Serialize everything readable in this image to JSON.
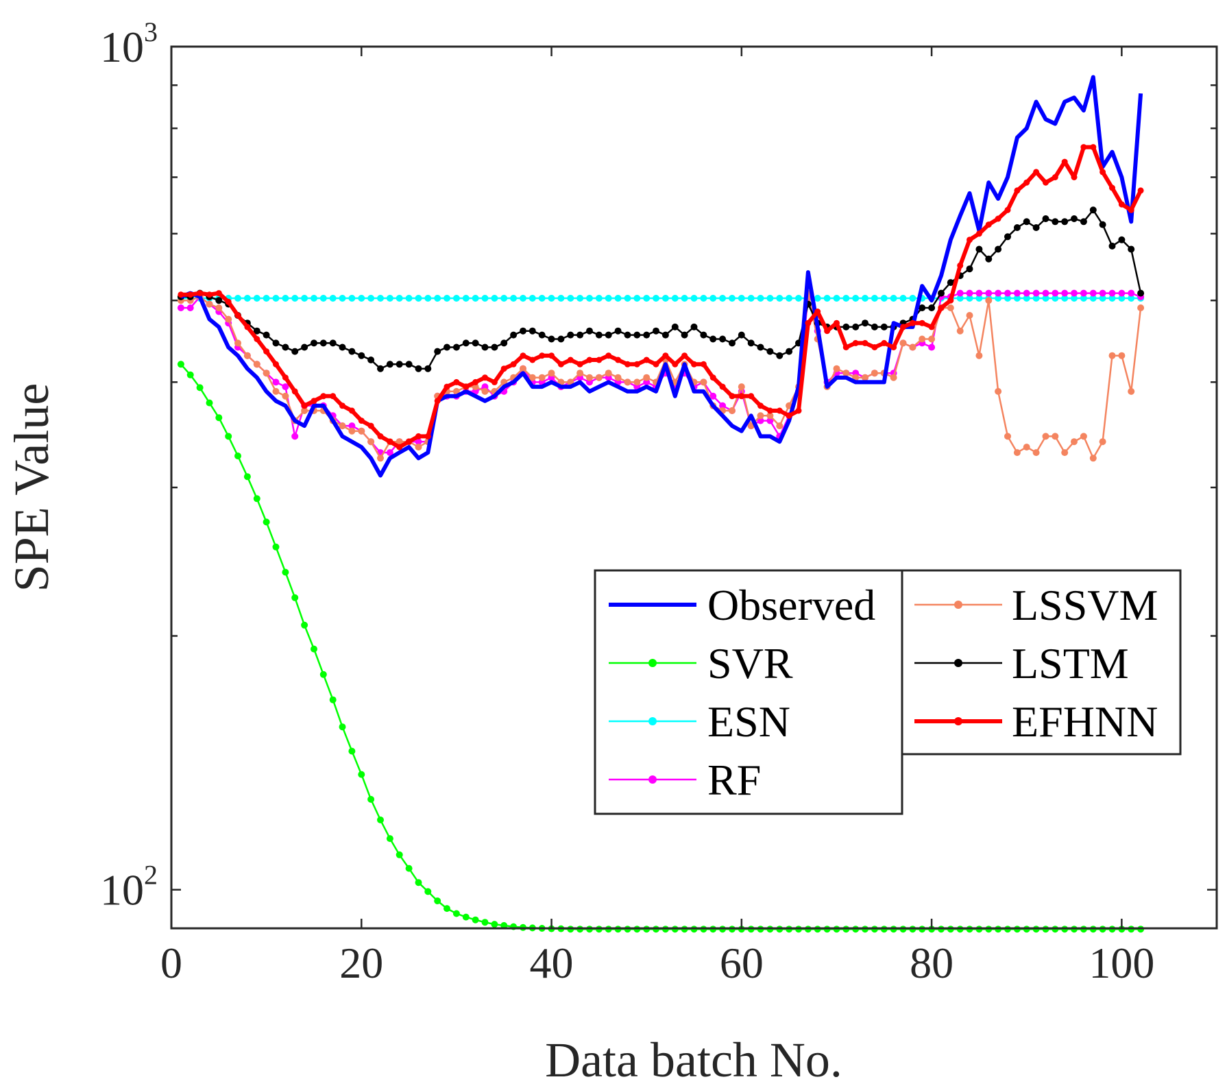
{
  "chart_data": {
    "type": "line",
    "title": "",
    "xlabel": "Data batch No.",
    "ylabel": "SPE Value",
    "xlim": [
      0,
      110
    ],
    "ylim": [
      90,
      1000
    ],
    "yscale": "log",
    "grid": false,
    "legend_position": "lower-right",
    "x_ticks": [
      0,
      20,
      40,
      60,
      80,
      100
    ],
    "x_tick_labels": [
      "0",
      "20",
      "40",
      "60",
      "80",
      "100"
    ],
    "y_ticks": [
      100,
      1000
    ],
    "y_tick_labels": [
      {
        "base": "10",
        "exp": "2"
      },
      {
        "base": "10",
        "exp": "3"
      }
    ],
    "x_start": 1,
    "series": [
      {
        "name": "Observed",
        "color": "#0000ff",
        "marker": false,
        "bold": true,
        "values": [
          505,
          510,
          505,
          475,
          465,
          440,
          430,
          415,
          405,
          390,
          380,
          375,
          360,
          355,
          375,
          375,
          360,
          345,
          340,
          335,
          325,
          310,
          325,
          330,
          335,
          325,
          330,
          380,
          385,
          385,
          390,
          385,
          380,
          385,
          395,
          400,
          410,
          395,
          395,
          400,
          395,
          395,
          400,
          390,
          395,
          400,
          395,
          390,
          390,
          395,
          390,
          420,
          385,
          420,
          390,
          390,
          375,
          365,
          355,
          350,
          365,
          345,
          345,
          340,
          360,
          395,
          540,
          465,
          395,
          405,
          405,
          400,
          400,
          400,
          400,
          470,
          465,
          465,
          520,
          500,
          535,
          590,
          630,
          670,
          605,
          690,
          660,
          700,
          780,
          800,
          860,
          820,
          810,
          860,
          870,
          840,
          920,
          720,
          750,
          700,
          620,
          880
        ]
      },
      {
        "name": "SVR",
        "color": "#00ff00",
        "marker": true,
        "bold": false,
        "values": [
          420,
          408,
          394,
          378,
          363,
          345,
          327,
          309,
          291,
          273,
          255,
          238,
          222,
          206,
          193,
          180,
          168,
          156,
          146,
          137,
          128,
          121,
          115,
          110,
          106,
          102,
          99.5,
          97,
          95,
          93.7,
          92.8,
          92.1,
          91.5,
          91,
          90.7,
          90.4,
          90.2,
          90.1,
          90,
          89.9,
          89.9,
          89.8,
          89.8,
          89.8,
          89.8,
          89.8,
          89.8,
          89.8,
          89.8,
          89.8,
          89.8,
          89.8,
          89.8,
          89.8,
          89.8,
          89.8,
          89.8,
          89.8,
          89.8,
          89.8,
          89.8,
          89.8,
          89.8,
          89.8,
          89.8,
          89.8,
          89.8,
          89.8,
          89.8,
          89.8,
          89.8,
          89.8,
          89.8,
          89.8,
          89.8,
          89.8,
          89.8,
          89.8,
          89.8,
          89.8,
          89.8,
          89.8,
          89.8,
          89.8,
          89.8,
          89.8,
          89.8,
          89.8,
          89.8,
          89.8,
          89.8,
          89.8,
          89.8,
          89.8,
          89.8,
          89.8,
          89.8,
          89.8,
          89.8,
          89.8,
          89.8,
          89.8
        ]
      },
      {
        "name": "ESN",
        "color": "#00ffff",
        "marker": true,
        "bold": false,
        "values": [
          503,
          503,
          503,
          503,
          503,
          503,
          503,
          503,
          503,
          503,
          503,
          503,
          503,
          503,
          503,
          503,
          503,
          503,
          503,
          503,
          503,
          503,
          503,
          503,
          503,
          503,
          503,
          503,
          503,
          503,
          503,
          503,
          503,
          503,
          503,
          503,
          503,
          503,
          503,
          503,
          503,
          503,
          503,
          503,
          503,
          503,
          503,
          503,
          503,
          503,
          503,
          503,
          503,
          503,
          503,
          503,
          503,
          503,
          503,
          503,
          503,
          503,
          503,
          503,
          503,
          503,
          503,
          503,
          503,
          503,
          503,
          503,
          503,
          503,
          503,
          503,
          503,
          503,
          503,
          503,
          503,
          503,
          503,
          503,
          503,
          503,
          503,
          503,
          503,
          503,
          503,
          503,
          503,
          503,
          503,
          503,
          503,
          503,
          503,
          503,
          503,
          503
        ]
      },
      {
        "name": "RF",
        "color": "#ff00ff",
        "marker": true,
        "bold": false,
        "values": [
          490,
          490,
          505,
          495,
          485,
          470,
          440,
          430,
          420,
          410,
          400,
          395,
          345,
          375,
          375,
          375,
          365,
          355,
          355,
          350,
          340,
          330,
          330,
          340,
          340,
          340,
          340,
          385,
          385,
          385,
          390,
          390,
          395,
          385,
          390,
          400,
          415,
          400,
          400,
          405,
          395,
          400,
          405,
          400,
          405,
          405,
          400,
          400,
          395,
          400,
          395,
          410,
          395,
          410,
          395,
          400,
          385,
          375,
          370,
          390,
          355,
          360,
          360,
          345,
          365,
          390,
          505,
          460,
          400,
          410,
          410,
          410,
          405,
          410,
          410,
          410,
          445,
          440,
          445,
          440,
          505,
          505,
          510,
          510,
          510,
          510,
          510,
          510,
          510,
          510,
          510,
          510,
          510,
          510,
          510,
          510,
          510,
          510,
          510,
          510,
          510,
          505
        ]
      },
      {
        "name": "LSSVM",
        "color": "#f4845f",
        "marker": true,
        "bold": false,
        "values": [
          500,
          500,
          505,
          495,
          490,
          475,
          445,
          430,
          420,
          410,
          390,
          385,
          360,
          370,
          370,
          370,
          360,
          355,
          350,
          350,
          340,
          325,
          340,
          340,
          340,
          335,
          340,
          385,
          390,
          390,
          395,
          395,
          390,
          390,
          400,
          405,
          415,
          405,
          405,
          410,
          400,
          400,
          410,
          405,
          405,
          410,
          405,
          400,
          400,
          405,
          400,
          425,
          400,
          420,
          400,
          400,
          375,
          370,
          370,
          395,
          355,
          365,
          365,
          355,
          375,
          395,
          510,
          450,
          395,
          415,
          410,
          405,
          405,
          410,
          410,
          405,
          445,
          440,
          450,
          450,
          490,
          490,
          460,
          480,
          430,
          500,
          390,
          345,
          330,
          335,
          330,
          345,
          345,
          330,
          340,
          345,
          325,
          340,
          430,
          430,
          390,
          490
        ]
      },
      {
        "name": "LSTM",
        "color": "#000000",
        "marker": true,
        "bold": false,
        "values": [
          505,
          505,
          510,
          505,
          500,
          495,
          480,
          470,
          460,
          455,
          445,
          440,
          435,
          440,
          445,
          445,
          445,
          440,
          435,
          430,
          425,
          415,
          420,
          420,
          420,
          415,
          415,
          435,
          440,
          440,
          445,
          445,
          440,
          440,
          445,
          455,
          460,
          460,
          455,
          450,
          450,
          455,
          455,
          460,
          455,
          455,
          460,
          455,
          455,
          455,
          460,
          455,
          465,
          455,
          465,
          455,
          450,
          450,
          445,
          455,
          445,
          440,
          435,
          430,
          435,
          445,
          495,
          470,
          465,
          465,
          465,
          465,
          470,
          465,
          465,
          465,
          470,
          475,
          490,
          490,
          510,
          525,
          535,
          545,
          575,
          560,
          575,
          595,
          610,
          620,
          610,
          625,
          620,
          620,
          625,
          620,
          640,
          615,
          580,
          590,
          575,
          510
        ]
      },
      {
        "name": "EFHNN",
        "color": "#ff0000",
        "marker": true,
        "bold": true,
        "values": [
          508,
          508,
          510,
          508,
          510,
          498,
          480,
          465,
          450,
          435,
          420,
          405,
          390,
          375,
          380,
          385,
          385,
          375,
          370,
          360,
          355,
          345,
          340,
          335,
          340,
          345,
          345,
          380,
          395,
          400,
          395,
          400,
          405,
          400,
          415,
          420,
          430,
          425,
          430,
          430,
          420,
          425,
          420,
          425,
          425,
          430,
          425,
          420,
          420,
          425,
          420,
          430,
          420,
          430,
          420,
          420,
          405,
          395,
          385,
          385,
          385,
          375,
          370,
          370,
          365,
          370,
          470,
          485,
          460,
          470,
          440,
          445,
          445,
          440,
          445,
          440,
          465,
          470,
          470,
          465,
          490,
          500,
          550,
          590,
          600,
          615,
          625,
          640,
          675,
          690,
          710,
          690,
          700,
          730,
          700,
          760,
          760,
          710,
          680,
          650,
          640,
          675
        ]
      }
    ]
  }
}
